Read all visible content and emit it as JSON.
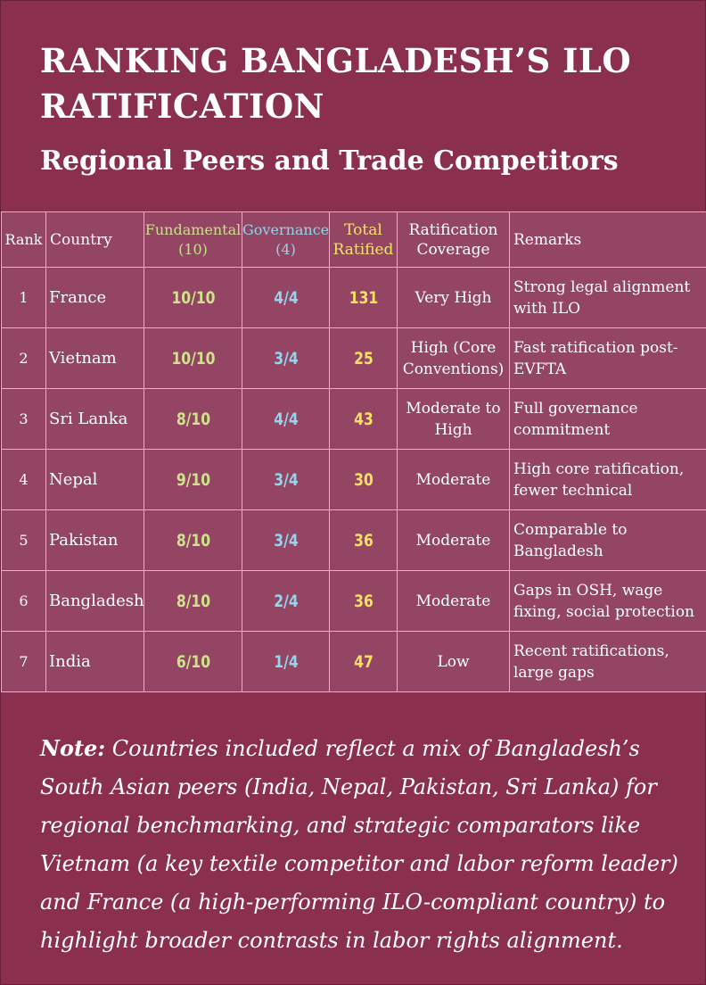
{
  "header": {
    "title": "RANKING BANGLADESH’S ILO RATIFICATION",
    "subtitle": "Regional Peers and Trade Competitors"
  },
  "table": {
    "columns": {
      "rank": "Rank",
      "country": "Country",
      "fundamental": "Fundamental",
      "fundamental_sub": "(10)",
      "governance": "Governance",
      "governance_sub": "(4)",
      "total": "Total",
      "total_sub": "Ratified",
      "coverage": "Ratification",
      "coverage_sub": "Coverage",
      "remarks": "Remarks"
    },
    "rows": [
      {
        "rank": "1",
        "country": "France",
        "fundamental": "10/10",
        "governance": "4/4",
        "total": "131",
        "coverage": "Very High",
        "remarks": "Strong legal alignment with ILO"
      },
      {
        "rank": "2",
        "country": "Vietnam",
        "fundamental": "10/10",
        "governance": "3/4",
        "total": "25",
        "coverage": "High (Core Conventions)",
        "remarks": "Fast ratification post-EVFTA"
      },
      {
        "rank": "3",
        "country": "Sri Lanka",
        "fundamental": "8/10",
        "governance": "4/4",
        "total": "43",
        "coverage": "Moderate to High",
        "remarks": "Full governance commitment"
      },
      {
        "rank": "4",
        "country": "Nepal",
        "fundamental": "9/10",
        "governance": "3/4",
        "total": "30",
        "coverage": "Moderate",
        "remarks": "High core ratification, fewer technical"
      },
      {
        "rank": "5",
        "country": "Pakistan",
        "fundamental": "8/10",
        "governance": "3/4",
        "total": "36",
        "coverage": "Moderate",
        "remarks": "Comparable to Bangladesh"
      },
      {
        "rank": "6",
        "country": "Bangladesh",
        "fundamental": "8/10",
        "governance": "2/4",
        "total": "36",
        "coverage": "Moderate",
        "remarks": "Gaps in OSH, wage fixing, social protection"
      },
      {
        "rank": "7",
        "country": "India",
        "fundamental": "6/10",
        "governance": "1/4",
        "total": "47",
        "coverage": "Low",
        "remarks": "Recent ratifications, large gaps"
      }
    ]
  },
  "note": {
    "label": "Note:",
    "text": " Countries included reflect a mix of Bangladesh’s South Asian peers (India, Nepal, Pakistan, Sri Lanka) for regional benchmarking, and strategic comparators like Vietnam (a key textile competitor and labor reform leader) and France (a high-performing ILO-compliant country) to highlight broader contrasts in labor rights alignment."
  },
  "colors": {
    "background": "#8a2f4e",
    "table_background": "#934563",
    "fundamental": "#cfe38c",
    "governance": "#8fd8f0",
    "total": "#f7e260"
  }
}
